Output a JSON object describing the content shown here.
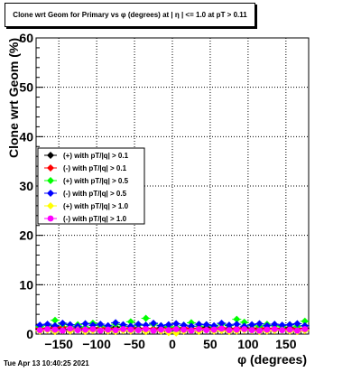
{
  "title": "Clone wrt Geom for Primary vs φ (degrees) at | η | <= 1.0 at pT > 0.11",
  "timestamp": "Tue Apr 13 10:40:25 2021",
  "chart_data": {
    "type": "scatter",
    "title": "Clone wrt Geom for Primary vs φ (degrees) at | η | <= 1.0 at pT > 0.11",
    "xlabel": "φ (degrees)",
    "ylabel": "Clone wrt Geom (%)",
    "xlim": [
      -180,
      180
    ],
    "ylim": [
      0,
      60
    ],
    "xticks": [
      -150,
      -100,
      -50,
      0,
      50,
      100,
      150
    ],
    "yticks": [
      0,
      10,
      20,
      30,
      40,
      50,
      60
    ],
    "grid": true,
    "legend_position": "left",
    "x": [
      -175,
      -165,
      -155,
      -145,
      -135,
      -125,
      -115,
      -105,
      -95,
      -85,
      -75,
      -65,
      -55,
      -45,
      -35,
      -25,
      -15,
      -5,
      5,
      15,
      25,
      35,
      45,
      55,
      65,
      75,
      85,
      95,
      105,
      115,
      125,
      135,
      145,
      155,
      165,
      175
    ],
    "series": [
      {
        "name": "(+) with pT/|q| > 0.1",
        "color": "#000000",
        "marker": "diamond",
        "values": [
          1.0,
          1.2,
          1.5,
          1.1,
          0.9,
          1.3,
          1.0,
          1.2,
          0.8,
          1.1,
          1.4,
          1.0,
          0.9,
          1.2,
          1.1,
          1.0,
          1.3,
          0.9,
          0.8,
          1.1,
          1.2,
          1.0,
          1.4,
          1.1,
          0.9,
          1.2,
          1.0,
          1.3,
          1.1,
          0.9,
          1.2,
          1.0,
          1.1,
          1.3,
          1.0,
          1.2
        ]
      },
      {
        "name": "(-) with pT/|q| > 0.1",
        "color": "#ff0000",
        "marker": "diamond",
        "values": [
          1.2,
          1.0,
          1.3,
          1.4,
          1.1,
          0.9,
          1.2,
          1.0,
          1.3,
          1.2,
          1.0,
          1.1,
          1.3,
          1.0,
          1.2,
          1.1,
          0.9,
          1.2,
          1.0,
          1.3,
          1.1,
          1.2,
          1.0,
          1.1,
          1.3,
          1.0,
          1.2,
          1.1,
          1.0,
          1.3,
          1.1,
          1.2,
          1.0,
          1.1,
          1.2,
          1.0
        ]
      },
      {
        "name": "(+) with pT/|q| > 0.5",
        "color": "#00ff00",
        "marker": "diamond",
        "values": [
          1.5,
          1.8,
          2.8,
          2.0,
          1.6,
          1.9,
          1.4,
          2.2,
          1.7,
          1.5,
          2.0,
          1.6,
          2.5,
          1.8,
          3.2,
          2.0,
          1.7,
          1.5,
          1.4,
          1.8,
          2.3,
          1.6,
          1.9,
          1.5,
          2.0,
          1.7,
          3.0,
          2.4,
          1.8,
          1.6,
          2.0,
          1.7,
          1.5,
          1.9,
          1.6,
          2.6
        ]
      },
      {
        "name": "(-) with pT/|q| > 0.5",
        "color": "#0000ff",
        "marker": "diamond",
        "values": [
          1.8,
          2.0,
          1.7,
          2.2,
          1.9,
          1.6,
          2.1,
          1.8,
          2.0,
          1.7,
          2.3,
          1.9,
          1.6,
          2.0,
          1.8,
          2.2,
          1.7,
          1.9,
          2.1,
          1.8,
          1.6,
          2.0,
          1.9,
          1.7,
          2.2,
          1.8,
          2.0,
          1.6,
          1.9,
          2.1,
          1.7,
          2.0,
          1.8,
          1.9,
          2.1,
          1.7
        ]
      },
      {
        "name": "(+) with pT/|q| > 1.0",
        "color": "#ffff00",
        "marker": "diamond",
        "values": [
          0.6,
          0.8,
          0.5,
          0.7,
          0.6,
          0.9,
          0.5,
          0.7,
          0.8,
          0.6,
          0.5,
          0.7,
          0.6,
          0.8,
          0.5,
          0.7,
          0.6,
          0.3,
          0.2,
          0.6,
          0.7,
          0.5,
          0.8,
          0.6,
          0.7,
          0.5,
          0.6,
          0.8,
          0.7,
          0.5,
          0.6,
          0.7,
          0.8,
          0.6,
          0.5,
          0.7
        ]
      },
      {
        "name": "(-) with pT/|q| > 1.0",
        "color": "#ff00ff",
        "marker": "circle",
        "values": [
          0.8,
          1.0,
          0.9,
          0.7,
          1.1,
          0.8,
          0.9,
          1.0,
          0.7,
          0.9,
          0.8,
          1.0,
          0.9,
          0.8,
          1.0,
          0.7,
          0.9,
          0.8,
          1.0,
          0.9,
          0.7,
          1.0,
          0.8,
          0.9,
          1.1,
          0.8,
          0.9,
          1.0,
          0.8,
          0.7,
          0.9,
          1.0,
          0.8,
          0.9,
          0.7,
          1.0
        ]
      }
    ]
  }
}
